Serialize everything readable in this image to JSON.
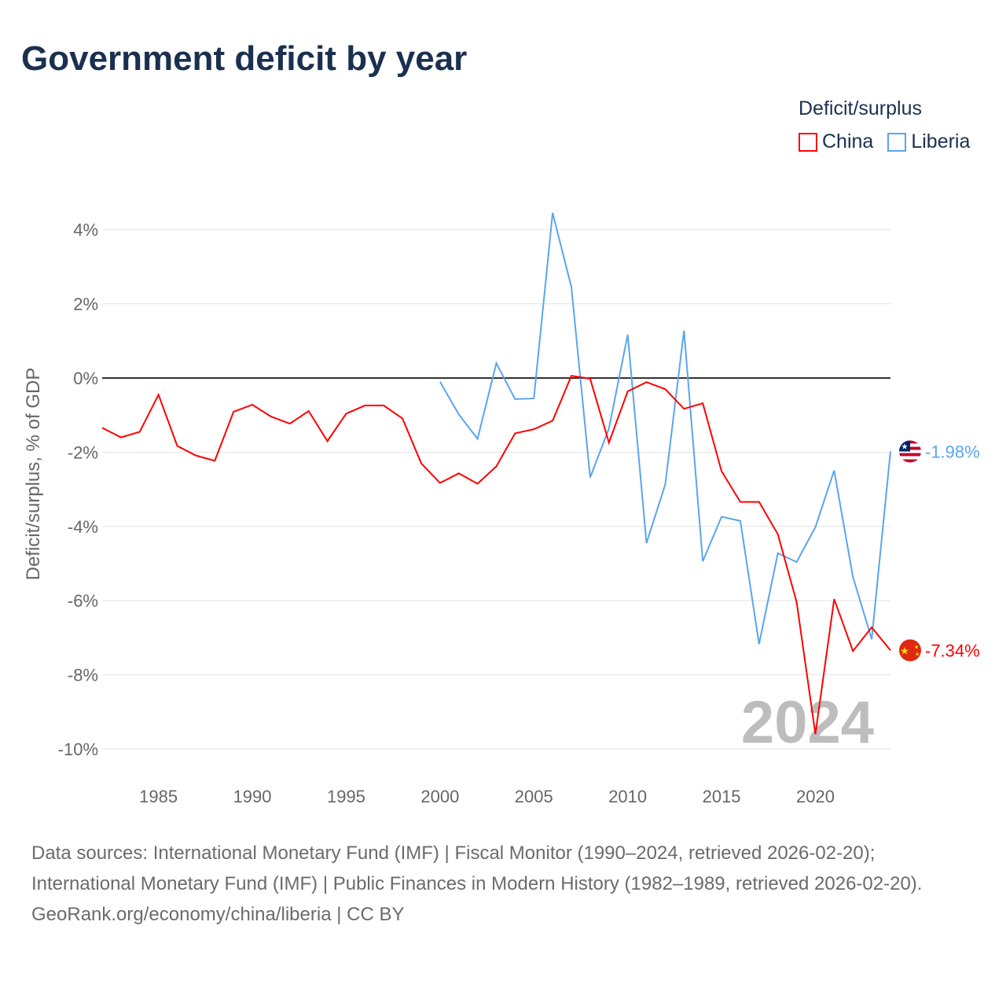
{
  "title": "Government deficit by year",
  "legend": {
    "title": "Deficit/surplus",
    "items": [
      {
        "label": "China",
        "color": "#ff0000"
      },
      {
        "label": "Liberia",
        "color": "#5aa5ee"
      }
    ]
  },
  "watermark_year": "2024",
  "chart_data": {
    "type": "line",
    "title": "Government deficit by year",
    "xlabel": "",
    "ylabel": "Deficit/surplus, % of GDP",
    "ylim": [
      -10,
      4
    ],
    "xlim": [
      1982,
      2024
    ],
    "grid": true,
    "legend_position": "top-right",
    "yticks": [
      4,
      2,
      0,
      -2,
      -4,
      -6,
      -8,
      -10
    ],
    "ytick_labels": [
      "4%",
      "2%",
      "0%",
      "-2%",
      "-4%",
      "-6%",
      "-8%",
      "-10%"
    ],
    "xticks": [
      1985,
      1990,
      1995,
      2000,
      2005,
      2010,
      2015,
      2020
    ],
    "xtick_labels": [
      "1985",
      "1990",
      "1995",
      "2000",
      "2005",
      "2010",
      "2015",
      "2020"
    ],
    "series": [
      {
        "name": "China",
        "color": "#ff0000",
        "end_label": "-7.34%",
        "x": [
          1982,
          1983,
          1984,
          1985,
          1986,
          1987,
          1988,
          1989,
          1990,
          1991,
          1992,
          1993,
          1994,
          1995,
          1996,
          1997,
          1998,
          1999,
          2000,
          2001,
          2002,
          2003,
          2004,
          2005,
          2006,
          2007,
          2008,
          2009,
          2010,
          2011,
          2012,
          2013,
          2014,
          2015,
          2016,
          2017,
          2018,
          2019,
          2020,
          2021,
          2022,
          2023,
          2024
        ],
        "values": [
          -1.34,
          -1.6,
          -1.45,
          -0.45,
          -1.83,
          -2.09,
          -2.23,
          -0.91,
          -0.72,
          -1.04,
          -1.23,
          -0.89,
          -1.7,
          -0.96,
          -0.74,
          -0.74,
          -1.09,
          -2.3,
          -2.83,
          -2.57,
          -2.85,
          -2.38,
          -1.49,
          -1.38,
          -1.15,
          0.06,
          -0.02,
          -1.74,
          -0.36,
          -0.11,
          -0.3,
          -0.83,
          -0.68,
          -2.51,
          -3.34,
          -3.34,
          -4.21,
          -6.04,
          -9.6,
          -5.96,
          -7.36,
          -6.72,
          -7.34
        ]
      },
      {
        "name": "Liberia",
        "color": "#5aa5ee",
        "end_label": "-1.98%",
        "x": [
          2000,
          2001,
          2002,
          2003,
          2004,
          2005,
          2006,
          2007,
          2008,
          2009,
          2010,
          2011,
          2012,
          2013,
          2014,
          2015,
          2016,
          2017,
          2018,
          2019,
          2020,
          2021,
          2022,
          2023,
          2024
        ],
        "values": [
          -0.1,
          -0.98,
          -1.64,
          0.4,
          -0.57,
          -0.55,
          4.45,
          2.45,
          -2.68,
          -1.36,
          1.17,
          -4.45,
          -2.87,
          1.28,
          -4.94,
          -3.74,
          -3.85,
          -7.17,
          -4.72,
          -4.96,
          -4.02,
          -2.49,
          -5.36,
          -7.04,
          -1.98
        ]
      }
    ]
  },
  "sources": {
    "line1": "Data sources: International Monetary Fund (IMF) | Fiscal Monitor (1990–2024, retrieved 2026-02-20); International Monetary Fund (IMF) | Public Finances in Modern History (1982–1989, retrieved 2026-02-20).",
    "line2": "GeoRank.org/economy/china/liberia | CC BY"
  }
}
